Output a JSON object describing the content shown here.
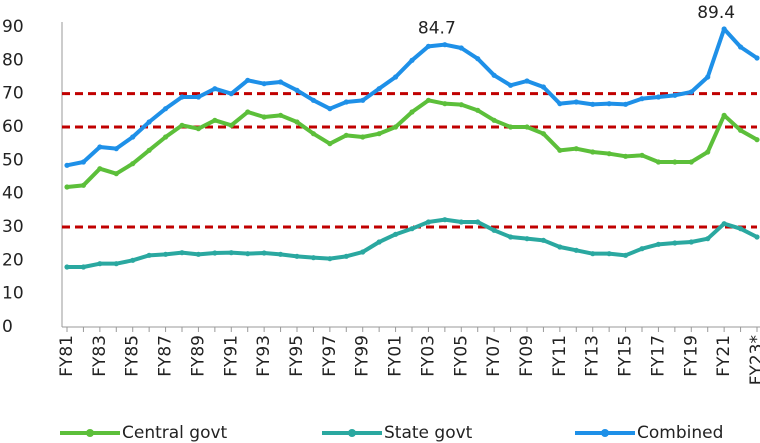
{
  "chart_data": {
    "type": "line",
    "categories": [
      "FY81",
      null,
      "FY83",
      null,
      "FY85",
      null,
      "FY87",
      null,
      "FY89",
      null,
      "FY91",
      null,
      "FY93",
      null,
      "FY95",
      null,
      "FY97",
      null,
      "FY99",
      null,
      "FY01",
      null,
      "FY03",
      null,
      "FY05",
      null,
      "FY07",
      null,
      "FY09",
      null,
      "FY11",
      null,
      "FY13",
      null,
      "FY15",
      null,
      "FY17",
      null,
      "FY19",
      null,
      "FY21",
      null,
      "FY23*"
    ],
    "series": [
      {
        "name": "Central govt",
        "color": "#5cbf3a",
        "values": [
          42,
          42.5,
          47.5,
          46,
          49,
          53,
          57,
          60.5,
          59.5,
          62,
          60.5,
          64.5,
          63,
          63.5,
          61.5,
          58,
          55,
          57.5,
          57,
          58,
          60,
          64.5,
          68,
          67,
          66.7,
          65,
          62,
          60,
          60,
          58,
          53,
          53.5,
          52.5,
          52,
          51.2,
          51.5,
          49.5,
          49.5,
          49.5,
          52.5,
          63.5,
          59,
          56.2
        ]
      },
      {
        "name": "State govt",
        "color": "#2aa8a0",
        "values": [
          18,
          18,
          19,
          19,
          20,
          21.5,
          21.8,
          22.3,
          21.8,
          22.2,
          22.3,
          22,
          22.2,
          21.8,
          21.2,
          20.8,
          20.5,
          21.2,
          22.5,
          25.5,
          27.8,
          29.5,
          31.5,
          32.2,
          31.5,
          31.5,
          29,
          27,
          26.5,
          26,
          24,
          23,
          22,
          22,
          21.5,
          23.5,
          24.8,
          25.2,
          25.5,
          26.5,
          31,
          29.5,
          27
        ]
      },
      {
        "name": "Combined",
        "color": "#1e90e8",
        "values": [
          48.5,
          49.5,
          54,
          53.5,
          57,
          61.5,
          65.5,
          69,
          69,
          71.5,
          70,
          74,
          73,
          73.5,
          71,
          68,
          65.5,
          67.5,
          68,
          71.5,
          75,
          80,
          84.2,
          84.7,
          83.7,
          80.5,
          75.5,
          72.5,
          73.8,
          72,
          67,
          67.5,
          66.8,
          67,
          66.8,
          68.5,
          69,
          69.5,
          70.5,
          75,
          89.4,
          84,
          80.7
        ]
      }
    ],
    "annotations": [
      "84.7",
      "89.4"
    ],
    "reference_lines": [
      30,
      60,
      70
    ],
    "reference_color": "#c00000",
    "ylim": [
      0,
      90
    ],
    "yticks": [
      0,
      10,
      20,
      30,
      40,
      50,
      60,
      70,
      80,
      90
    ],
    "legend": "bottom"
  }
}
